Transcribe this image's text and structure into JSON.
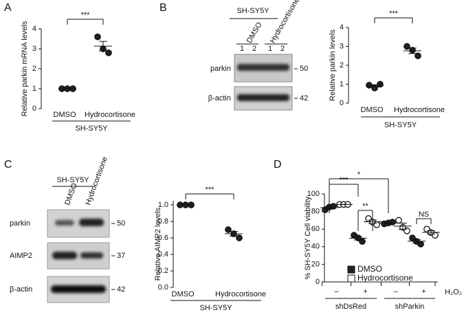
{
  "panel_labels": [
    "A",
    "B",
    "C",
    "D"
  ],
  "blots": [
    {
      "cell_line": "SH-SY5Y",
      "conditions": [
        "DMSO",
        "Hydrocortisone"
      ],
      "lanes": [
        "1",
        "2",
        "1",
        "2"
      ],
      "proteins": [
        "parkin",
        "β-actin"
      ],
      "markers": [
        "50",
        "42"
      ]
    },
    {
      "cell_line": "SH-SY5Y",
      "conditions": [
        "DMSO",
        "Hydrocortisone"
      ],
      "proteins": [
        "parkin",
        "AIMP2",
        "β-actin"
      ],
      "markers": [
        "50",
        "37",
        "42"
      ]
    }
  ],
  "chart_data": [
    {
      "type": "dotplot",
      "y_label": "Relative parkin mRNA levels",
      "categories": [
        "DMSO",
        "Hydrocortisone"
      ],
      "group_label": "SH-SY5Y",
      "values": [
        [
          1,
          1,
          1
        ],
        [
          3.6,
          3.0,
          2.8
        ]
      ],
      "ylim": [
        0,
        4
      ],
      "yticks": [
        0,
        1,
        2,
        3,
        4
      ],
      "significance": "***"
    },
    {
      "type": "dotplot",
      "y_label": "Relative parkin levels",
      "categories": [
        "DMSO",
        "Hydrocortisone"
      ],
      "group_label": "SH-SY5Y",
      "values": [
        [
          0.95,
          0.8,
          1.0
        ],
        [
          3.0,
          2.8,
          2.5
        ]
      ],
      "ylim": [
        0,
        4
      ],
      "yticks": [
        0,
        1,
        2,
        3,
        4
      ],
      "significance": "***"
    },
    {
      "type": "dotplot",
      "y_label": "Relative AIMP2 levels",
      "categories": [
        "DMSO",
        "Hydrocortisone"
      ],
      "group_label": "SH-SY5Y",
      "values": [
        [
          1,
          1,
          1
        ],
        [
          0.7,
          0.65,
          0.6
        ]
      ],
      "ylim": [
        0,
        1.05
      ],
      "yticks": [
        {
          "value": 0,
          "label": "0.0"
        },
        {
          "value": 0.2,
          "label": "0.2"
        },
        {
          "value": 0.4,
          "label": "0.4"
        },
        {
          "value": 0.6,
          "label": "0.6"
        },
        {
          "value": 0.8,
          "label": "0.8"
        },
        {
          "value": 1,
          "label": "1.0"
        }
      ],
      "significance": "***"
    },
    {
      "type": "grouped_dotplot",
      "y_label": "% SH-SY5Y Cell viability",
      "ylim": [
        0,
        100
      ],
      "yticks": [
        0,
        20,
        40,
        60,
        80,
        100
      ],
      "treatments": [
        "–",
        "+",
        "–",
        "+"
      ],
      "treatment_name": "H₂O₂",
      "groups": [
        "shDsRed",
        "shParkin"
      ],
      "series": [
        {
          "name": "DMSO",
          "color": "#222222",
          "values": [
            [
              82,
              85,
              86
            ],
            [
              53,
              50,
              46
            ],
            [
              66,
              67,
              68
            ],
            [
              50,
              46,
              43
            ]
          ]
        },
        {
          "name": "Hydrocortisone",
          "color": "#ffffff",
          "values": [
            [
              88,
              88,
              88
            ],
            [
              72,
              68,
              65
            ],
            [
              70,
              62,
              58
            ],
            [
              60,
              56,
              53
            ]
          ]
        }
      ],
      "significance": [
        "***",
        "*",
        "**",
        "NS"
      ]
    }
  ]
}
